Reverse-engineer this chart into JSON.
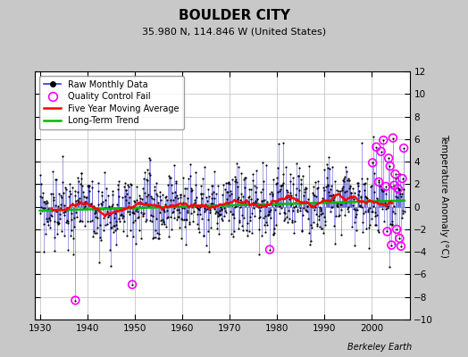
{
  "title": "BOULDER CITY",
  "subtitle": "35.980 N, 114.846 W (United States)",
  "ylabel": "Temperature Anomaly (°C)",
  "credit": "Berkeley Earth",
  "xlim": [
    1929,
    2008
  ],
  "ylim": [
    -10,
    12
  ],
  "yticks": [
    -10,
    -8,
    -6,
    -4,
    -2,
    0,
    2,
    4,
    6,
    8,
    10,
    12
  ],
  "xticks": [
    1930,
    1940,
    1950,
    1960,
    1970,
    1980,
    1990,
    2000
  ],
  "bg_color": "#c8c8c8",
  "plot_bg_color": "#ffffff",
  "raw_line_color": "#3333cc",
  "raw_marker_color": "#000000",
  "qc_fail_color": "#ff00ff",
  "moving_avg_color": "#ff0000",
  "trend_color": "#00bb00",
  "title_fontsize": 11,
  "subtitle_fontsize": 8,
  "tick_fontsize": 7.5,
  "ylabel_fontsize": 7.5
}
